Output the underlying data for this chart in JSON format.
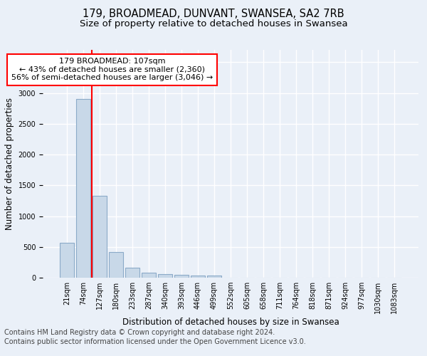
{
  "title1": "179, BROADMEAD, DUNVANT, SWANSEA, SA2 7RB",
  "title2": "Size of property relative to detached houses in Swansea",
  "xlabel": "Distribution of detached houses by size in Swansea",
  "ylabel": "Number of detached properties",
  "bin_labels": [
    "21sqm",
    "74sqm",
    "127sqm",
    "180sqm",
    "233sqm",
    "287sqm",
    "340sqm",
    "393sqm",
    "446sqm",
    "499sqm",
    "552sqm",
    "605sqm",
    "658sqm",
    "711sqm",
    "764sqm",
    "818sqm",
    "871sqm",
    "924sqm",
    "977sqm",
    "1030sqm",
    "1083sqm"
  ],
  "bar_values": [
    570,
    2900,
    1330,
    420,
    160,
    80,
    55,
    45,
    40,
    35,
    0,
    0,
    0,
    0,
    0,
    0,
    0,
    0,
    0,
    0,
    0
  ],
  "bar_color": "#c8d8e8",
  "bar_edgecolor": "#8baac8",
  "bar_linewidth": 0.8,
  "vline_color": "red",
  "vline_linewidth": 1.5,
  "vline_x": 1.55,
  "annotation_text": "179 BROADMEAD: 107sqm\n← 43% of detached houses are smaller (2,360)\n56% of semi-detached houses are larger (3,046) →",
  "annotation_box_edgecolor": "red",
  "annotation_box_facecolor": "white",
  "ylim": [
    0,
    3700
  ],
  "yticks": [
    0,
    500,
    1000,
    1500,
    2000,
    2500,
    3000,
    3500
  ],
  "footnote1": "Contains HM Land Registry data © Crown copyright and database right 2024.",
  "footnote2": "Contains public sector information licensed under the Open Government Licence v3.0.",
  "bg_color": "#eaf0f8",
  "plot_bg_color": "#eaf0f8",
  "grid_color": "white",
  "title1_fontsize": 10.5,
  "title2_fontsize": 9.5,
  "xlabel_fontsize": 8.5,
  "ylabel_fontsize": 8.5,
  "tick_fontsize": 7,
  "annotation_fontsize": 8,
  "footnote_fontsize": 7
}
